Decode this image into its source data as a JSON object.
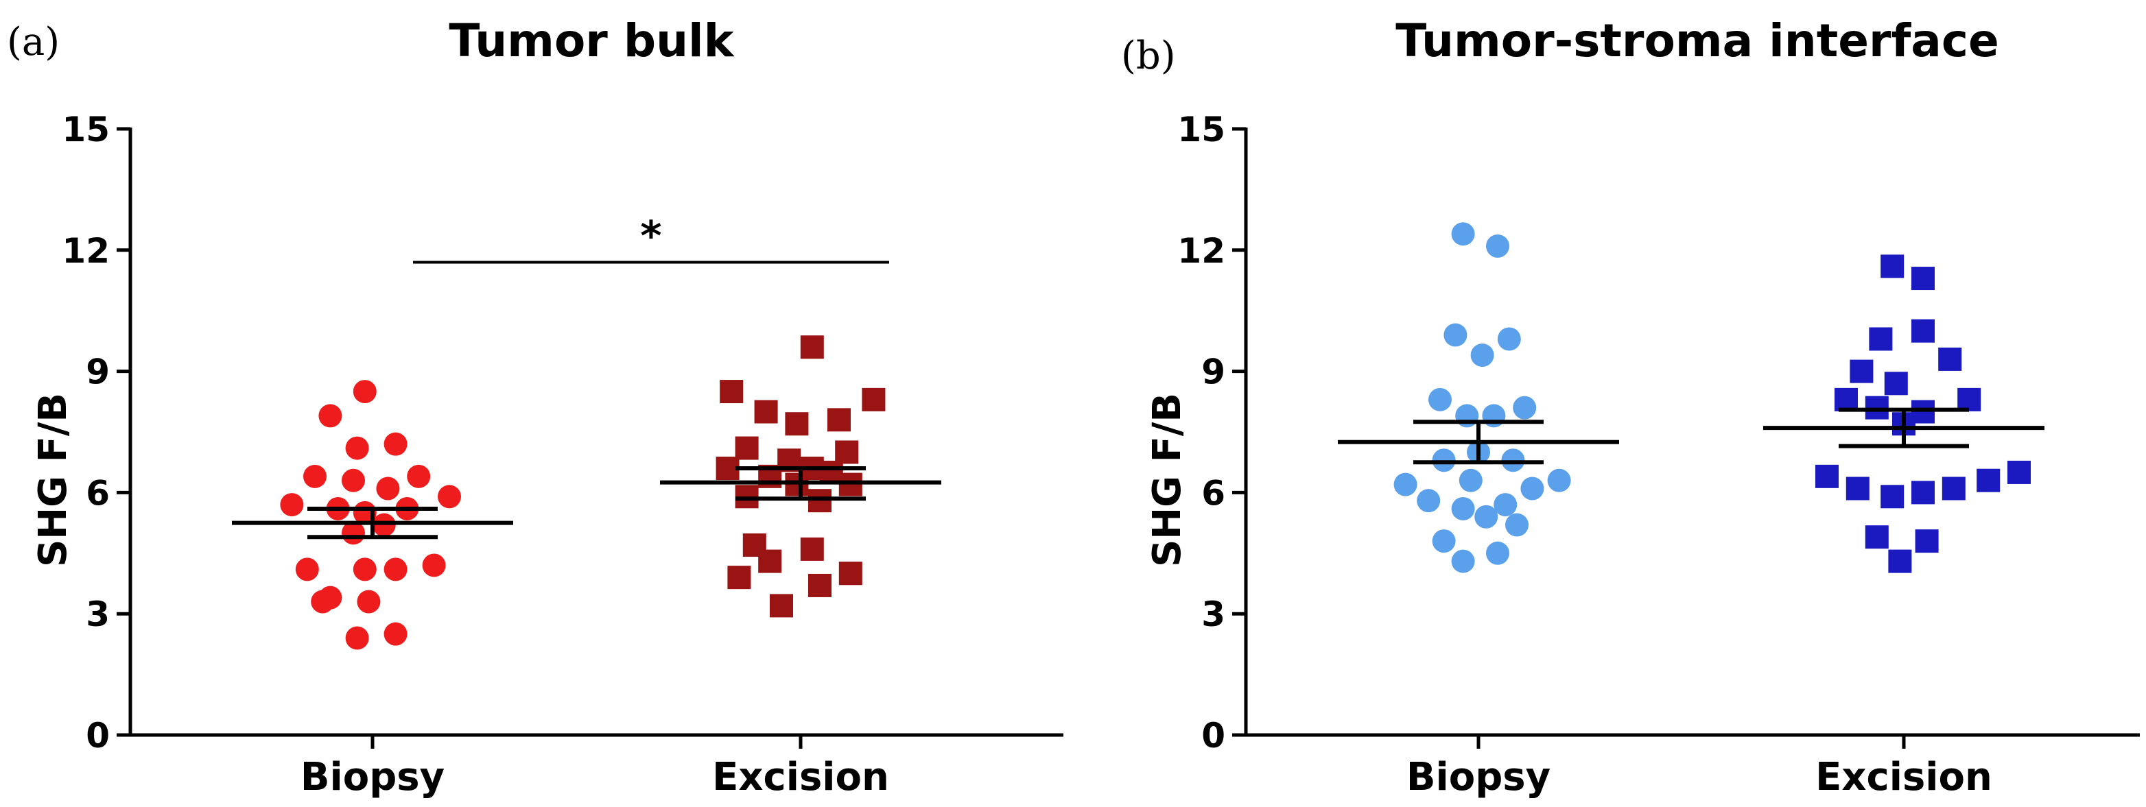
{
  "chart_data": [
    {
      "type": "scatter",
      "panel_label": "(a)",
      "title": "Tumor bulk",
      "xlabel": "",
      "ylabel": "SHG F/B",
      "ylim": [
        0,
        15
      ],
      "yticks": [
        0,
        3,
        6,
        9,
        12,
        15
      ],
      "categories": [
        "Biopsy",
        "Excision"
      ],
      "significance": {
        "label": "*",
        "between": [
          "Biopsy",
          "Excision"
        ],
        "y": 11.7
      },
      "series": [
        {
          "category": "Biopsy",
          "marker": "circle",
          "color": "#ee1c1c",
          "points": [
            {
              "x": -0.02,
              "y": 8.5
            },
            {
              "x": -0.11,
              "y": 7.9
            },
            {
              "x": -0.04,
              "y": 7.1
            },
            {
              "x": 0.06,
              "y": 7.2
            },
            {
              "x": -0.15,
              "y": 6.4
            },
            {
              "x": -0.05,
              "y": 6.3
            },
            {
              "x": 0.04,
              "y": 6.1
            },
            {
              "x": 0.12,
              "y": 6.4
            },
            {
              "x": -0.21,
              "y": 5.7
            },
            {
              "x": 0.2,
              "y": 5.9
            },
            {
              "x": -0.09,
              "y": 5.6
            },
            {
              "x": 0.09,
              "y": 5.6
            },
            {
              "x": -0.02,
              "y": 5.5
            },
            {
              "x": -0.05,
              "y": 5.0
            },
            {
              "x": 0.03,
              "y": 5.2
            },
            {
              "x": -0.17,
              "y": 4.1
            },
            {
              "x": -0.02,
              "y": 4.1
            },
            {
              "x": 0.06,
              "y": 4.1
            },
            {
              "x": 0.16,
              "y": 4.2
            },
            {
              "x": -0.11,
              "y": 3.4
            },
            {
              "x": -0.13,
              "y": 3.3
            },
            {
              "x": -0.01,
              "y": 3.3
            },
            {
              "x": -0.04,
              "y": 2.4
            },
            {
              "x": 0.06,
              "y": 2.5
            }
          ],
          "mean": 5.25,
          "sem": [
            4.9,
            5.6
          ]
        },
        {
          "category": "Excision",
          "marker": "square",
          "color": "#9b1414",
          "points": [
            {
              "x": 0.03,
              "y": 9.6
            },
            {
              "x": -0.18,
              "y": 8.5
            },
            {
              "x": -0.09,
              "y": 8.0
            },
            {
              "x": -0.01,
              "y": 7.7
            },
            {
              "x": 0.1,
              "y": 7.8
            },
            {
              "x": 0.19,
              "y": 8.3
            },
            {
              "x": -0.14,
              "y": 7.1
            },
            {
              "x": 0.12,
              "y": 7.0
            },
            {
              "x": -0.03,
              "y": 6.8
            },
            {
              "x": -0.19,
              "y": 6.6
            },
            {
              "x": 0.03,
              "y": 6.6
            },
            {
              "x": 0.08,
              "y": 6.5
            },
            {
              "x": -0.08,
              "y": 6.4
            },
            {
              "x": -0.01,
              "y": 6.2
            },
            {
              "x": 0.13,
              "y": 6.2
            },
            {
              "x": -0.14,
              "y": 5.9
            },
            {
              "x": 0.05,
              "y": 5.8
            },
            {
              "x": -0.12,
              "y": 4.7
            },
            {
              "x": 0.03,
              "y": 4.6
            },
            {
              "x": -0.08,
              "y": 4.3
            },
            {
              "x": -0.16,
              "y": 3.9
            },
            {
              "x": 0.13,
              "y": 4.0
            },
            {
              "x": 0.05,
              "y": 3.7
            },
            {
              "x": -0.05,
              "y": 3.2
            }
          ],
          "mean": 6.25,
          "sem": [
            5.85,
            6.6
          ]
        }
      ]
    },
    {
      "type": "scatter",
      "panel_label": "(b)",
      "title": "Tumor-stroma interface",
      "xlabel": "",
      "ylabel": "SHG F/B",
      "ylim": [
        0,
        15
      ],
      "yticks": [
        0,
        3,
        6,
        9,
        12,
        15
      ],
      "categories": [
        "Biopsy",
        "Excision"
      ],
      "series": [
        {
          "category": "Biopsy",
          "marker": "circle",
          "color": "#5aa0ea",
          "points": [
            {
              "x": -0.04,
              "y": 12.4
            },
            {
              "x": 0.05,
              "y": 12.1
            },
            {
              "x": -0.06,
              "y": 9.9
            },
            {
              "x": 0.08,
              "y": 9.8
            },
            {
              "x": 0.01,
              "y": 9.4
            },
            {
              "x": -0.1,
              "y": 8.3
            },
            {
              "x": 0.12,
              "y": 8.1
            },
            {
              "x": -0.03,
              "y": 7.9
            },
            {
              "x": 0.04,
              "y": 7.9
            },
            {
              "x": 0.0,
              "y": 7.0
            },
            {
              "x": -0.09,
              "y": 6.8
            },
            {
              "x": 0.09,
              "y": 6.8
            },
            {
              "x": -0.02,
              "y": 6.3
            },
            {
              "x": -0.19,
              "y": 6.2
            },
            {
              "x": 0.21,
              "y": 6.3
            },
            {
              "x": 0.14,
              "y": 6.1
            },
            {
              "x": -0.13,
              "y": 5.8
            },
            {
              "x": -0.04,
              "y": 5.6
            },
            {
              "x": 0.07,
              "y": 5.7
            },
            {
              "x": 0.02,
              "y": 5.4
            },
            {
              "x": 0.1,
              "y": 5.2
            },
            {
              "x": -0.09,
              "y": 4.8
            },
            {
              "x": -0.04,
              "y": 4.3
            },
            {
              "x": 0.05,
              "y": 4.5
            }
          ],
          "mean": 7.25,
          "sem": [
            6.75,
            7.75
          ]
        },
        {
          "category": "Excision",
          "marker": "square",
          "color": "#1a1ac0",
          "points": [
            {
              "x": -0.03,
              "y": 11.6
            },
            {
              "x": 0.05,
              "y": 11.3
            },
            {
              "x": -0.06,
              "y": 9.8
            },
            {
              "x": 0.05,
              "y": 10.0
            },
            {
              "x": 0.12,
              "y": 9.3
            },
            {
              "x": -0.11,
              "y": 9.0
            },
            {
              "x": -0.02,
              "y": 8.7
            },
            {
              "x": -0.15,
              "y": 8.3
            },
            {
              "x": -0.07,
              "y": 8.1
            },
            {
              "x": 0.05,
              "y": 8.0
            },
            {
              "x": 0.17,
              "y": 8.3
            },
            {
              "x": 0.0,
              "y": 7.7
            },
            {
              "x": -0.2,
              "y": 6.4
            },
            {
              "x": -0.12,
              "y": 6.1
            },
            {
              "x": -0.03,
              "y": 5.9
            },
            {
              "x": 0.05,
              "y": 6.0
            },
            {
              "x": 0.13,
              "y": 6.1
            },
            {
              "x": 0.22,
              "y": 6.3
            },
            {
              "x": 0.3,
              "y": 6.5
            },
            {
              "x": -0.07,
              "y": 4.9
            },
            {
              "x": 0.06,
              "y": 4.8
            },
            {
              "x": -0.01,
              "y": 4.3
            }
          ],
          "mean": 7.6,
          "sem": [
            7.15,
            8.05
          ]
        }
      ]
    }
  ]
}
